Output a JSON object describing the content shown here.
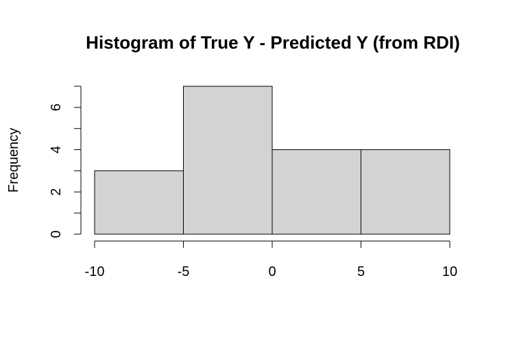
{
  "chart_data": {
    "type": "bar",
    "title": "Histogram of True Y - Predicted Y (from RDI)",
    "xlabel": "",
    "ylabel": "Frequency",
    "bins": [
      {
        "from": -10,
        "to": -5,
        "count": 3
      },
      {
        "from": -5,
        "to": 0,
        "count": 7
      },
      {
        "from": 0,
        "to": 5,
        "count": 4
      },
      {
        "from": 5,
        "to": 10,
        "count": 4
      }
    ],
    "x_ticks": [
      -10,
      -5,
      0,
      5,
      10
    ],
    "y_ticks_labeled": [
      0,
      2,
      4,
      6
    ],
    "y_ticks_minor": [
      1,
      3,
      5,
      7
    ],
    "xlim": [
      -10,
      10
    ],
    "ylim": [
      0,
      7
    ],
    "grid": false,
    "bar_fill": "#d3d3d3",
    "bar_stroke": "#000000"
  }
}
